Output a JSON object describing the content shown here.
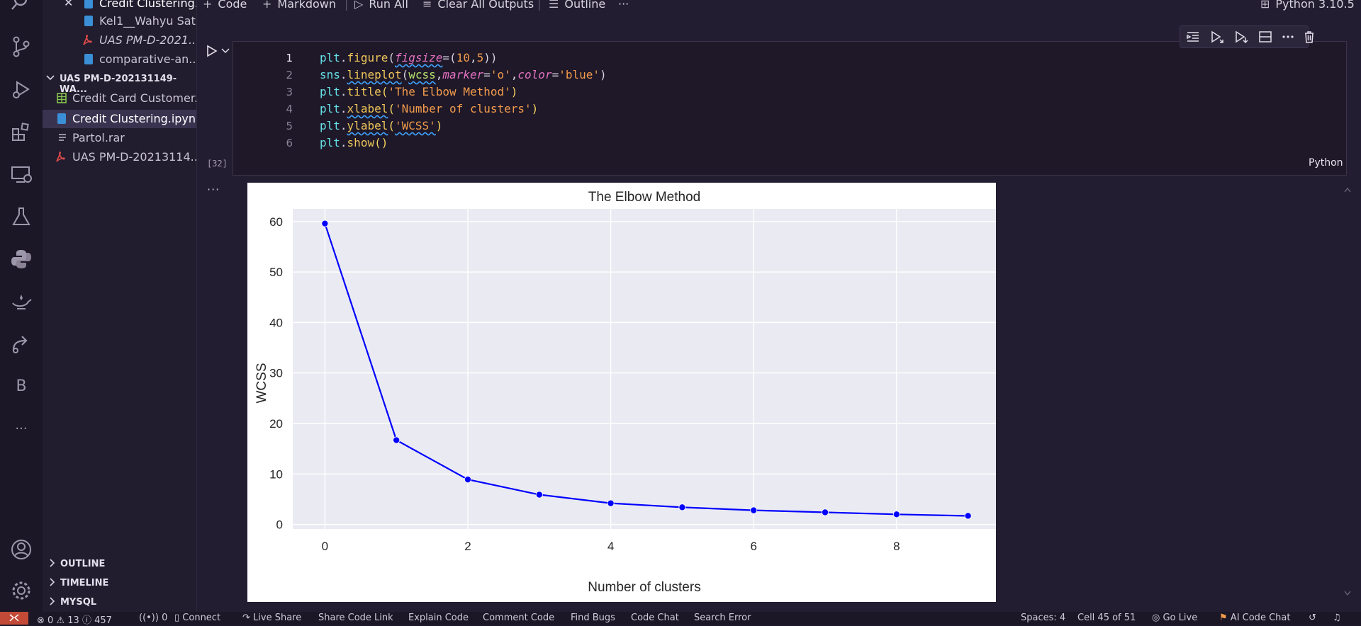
{
  "sidebar": {
    "files": [
      {
        "label": "Credit Clustering...",
        "type": "notebook"
      },
      {
        "label": "Kel1__Wahyu Sat...",
        "type": "notebook"
      },
      {
        "label": "UAS PM-D-2021...",
        "type": "pdf"
      },
      {
        "label": "comparative-an...",
        "type": "notebook"
      }
    ],
    "folder": "UAS PM-D-202131149-WA...",
    "folder_files": [
      {
        "label": "Credit Card Customer...",
        "type": "csv"
      },
      {
        "label": "Credit Clustering.ipynb",
        "type": "notebook"
      },
      {
        "label": "Partol.rar",
        "type": "archive"
      },
      {
        "label": "UAS PM-D-20213114...",
        "type": "pdf"
      }
    ],
    "sections": [
      "OUTLINE",
      "TIMELINE",
      "MYSQL"
    ],
    "activity_letter": "B",
    "more": "···"
  },
  "toolbar": {
    "code": "Code",
    "markdown": "Markdown",
    "run_all": "Run All",
    "clear_outputs": "Clear All Outputs",
    "outline": "Outline",
    "more": "···",
    "kernel": "Python 3.10.5"
  },
  "cell": {
    "execution_count": "[32]",
    "language": "Python",
    "line_numbers": [
      "1",
      "2",
      "3",
      "4",
      "5",
      "6"
    ],
    "output_more": "···"
  },
  "chart_data": {
    "type": "line",
    "title": "The Elbow Method",
    "xlabel": "Number of clusters",
    "ylabel": "WCSS",
    "x": [
      0,
      1,
      2,
      3,
      4,
      5,
      6,
      7,
      8,
      9
    ],
    "y": [
      59.6,
      16.7,
      8.9,
      5.9,
      4.2,
      3.4,
      2.8,
      2.4,
      2.0,
      1.7
    ],
    "xticks": [
      "0",
      "2",
      "4",
      "6",
      "8"
    ],
    "yticks": [
      "0",
      "10",
      "20",
      "30",
      "40",
      "50",
      "60"
    ],
    "xlim": [
      -0.45,
      9.45
    ],
    "ylim": [
      -0.9,
      62.5
    ],
    "marker": "o",
    "line_color": "#0000ff",
    "grid": true,
    "legend": "none"
  },
  "status": {
    "errors": "0",
    "warnings": "13",
    "info": "457",
    "ports": "0",
    "connect": "Connect",
    "live_share": "Live Share",
    "share_code_link": "Share Code Link",
    "explain_code": "Explain Code",
    "comment_code": "Comment Code",
    "find_bugs": "Find Bugs",
    "code_chat": "Code Chat",
    "search_error": "Search Error",
    "spaces": "Spaces: 4",
    "cell_pos": "Cell 45 of 51",
    "go_live": "Go Live",
    "ai_chat": "AI Code Chat"
  }
}
